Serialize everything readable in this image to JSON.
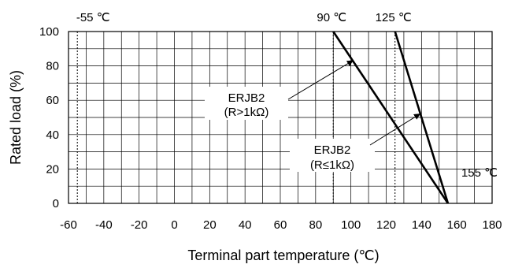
{
  "chart_data": {
    "type": "line",
    "xlabel": "Terminal part temperature (℃)",
    "ylabel": "Rated load (%)",
    "xlim": [
      -60,
      180
    ],
    "ylim": [
      0,
      100
    ],
    "x_ticks": [
      "-60",
      "-40",
      "-20",
      "0",
      "20",
      "40",
      "60",
      "80",
      "100",
      "120",
      "140",
      "160",
      "180"
    ],
    "y_ticks": [
      "0",
      "20",
      "40",
      "60",
      "80",
      "100"
    ],
    "x_minor_step": 10,
    "y_minor_step": 10,
    "grid": true,
    "series": [
      {
        "name": "ERJB2\n(R>1kΩ)",
        "x": [
          -55,
          90,
          155
        ],
        "y": [
          100,
          100,
          0
        ]
      },
      {
        "name": "ERJB2\n(R≤1kΩ)",
        "x": [
          -55,
          125,
          155
        ],
        "y": [
          100,
          100,
          0
        ]
      }
    ],
    "reference_lines": [
      {
        "x": -55,
        "label": "-55 ℃"
      },
      {
        "x": 90,
        "label": "90 ℃"
      },
      {
        "x": 125,
        "label": "125 ℃"
      }
    ],
    "annotations": [
      {
        "text": "155 ℃",
        "x": 155,
        "y": 0
      },
      {
        "lines": [
          "ERJB2",
          "(R>1kΩ)"
        ],
        "points_to": {
          "x": 101,
          "y": 83
        }
      },
      {
        "lines": [
          "ERJB2",
          "(R≤1kΩ)"
        ],
        "points_to": {
          "x": 139,
          "y": 52
        }
      }
    ]
  }
}
